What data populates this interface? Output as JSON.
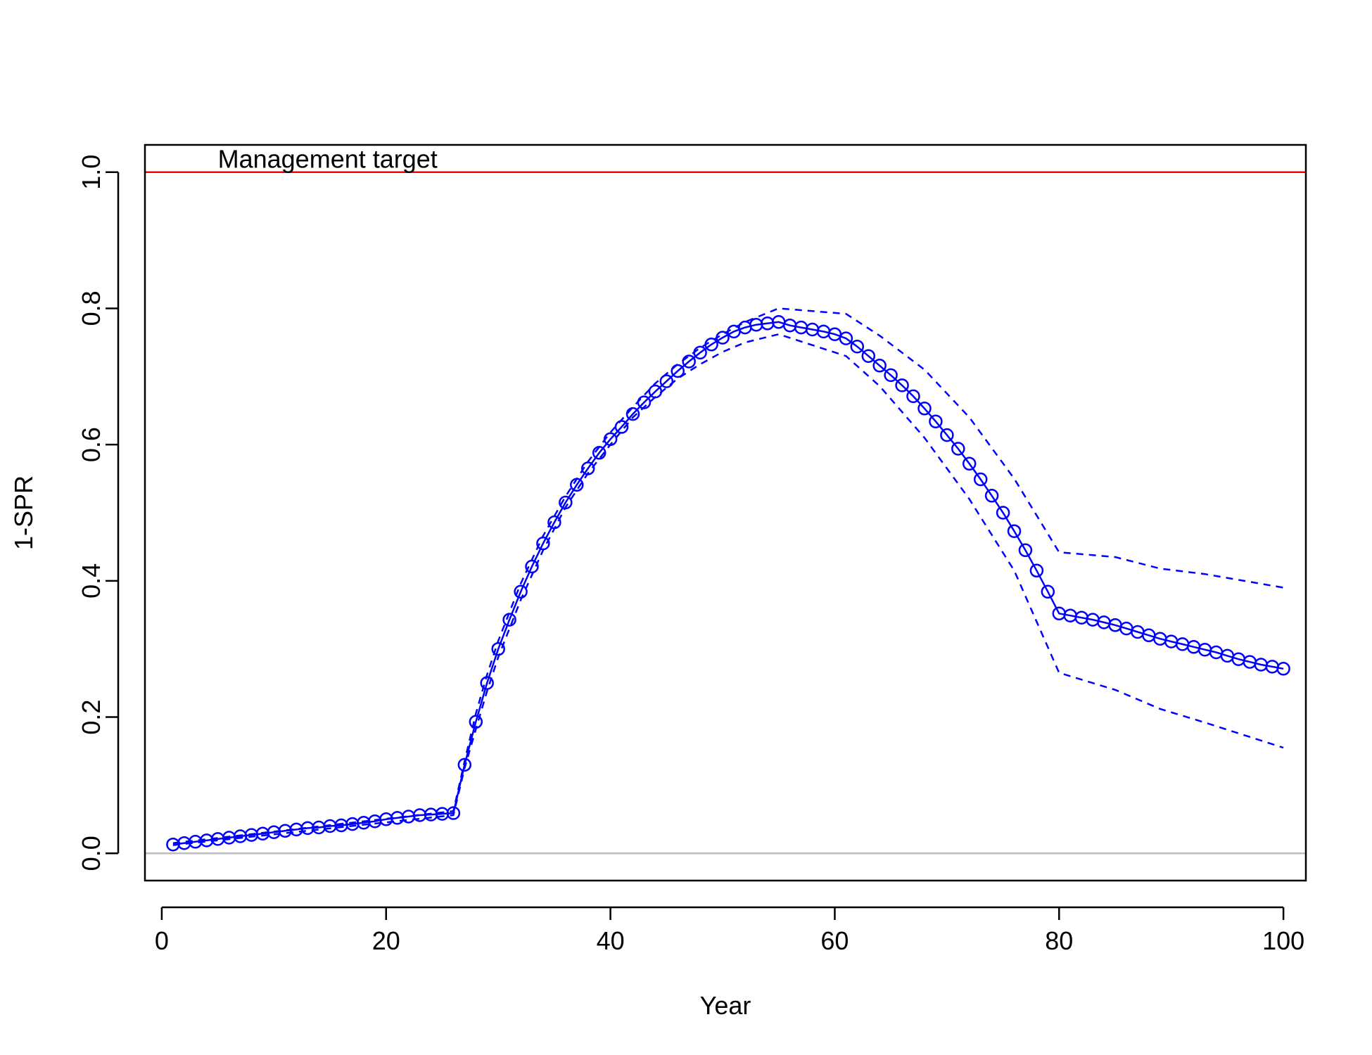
{
  "chart_data": {
    "type": "line",
    "title": "",
    "xlabel": "Year",
    "ylabel": "1-SPR",
    "xlim": [
      -1.5,
      102
    ],
    "ylim": [
      -0.04,
      1.04
    ],
    "xticks": [
      "0",
      "20",
      "40",
      "60",
      "80",
      "100"
    ],
    "xtick_values": [
      0,
      20,
      40,
      60,
      80,
      100
    ],
    "yticks": [
      "0.0",
      "0.2",
      "0.4",
      "0.6",
      "0.8",
      "1.0"
    ],
    "ytick_values": [
      0,
      0.2,
      0.4,
      0.6,
      0.8,
      1.0
    ],
    "grid": false,
    "reference_lines": [
      {
        "y": 1.0,
        "color": "#ff0000",
        "label": "Management target"
      },
      {
        "y": 0.0,
        "color": "#bebebe",
        "label": ""
      }
    ],
    "annotation": {
      "text": "Management target",
      "x": 5,
      "y": 1.0
    },
    "colors": {
      "series": "#0000ff",
      "target": "#ff0000",
      "zero": "#bebebe"
    },
    "series": [
      {
        "role": "estimate",
        "style": "solid-line-with-open-circles",
        "x": [
          1,
          2,
          3,
          4,
          5,
          6,
          7,
          8,
          9,
          10,
          11,
          12,
          13,
          14,
          15,
          16,
          17,
          18,
          19,
          20,
          21,
          22,
          23,
          24,
          25,
          26,
          27,
          28,
          29,
          30,
          31,
          32,
          33,
          34,
          35,
          36,
          37,
          38,
          39,
          40,
          41,
          42,
          43,
          44,
          45,
          46,
          47,
          48,
          49,
          50,
          51,
          52,
          53,
          54,
          55,
          56,
          57,
          58,
          59,
          60,
          61,
          62,
          63,
          64,
          65,
          66,
          67,
          68,
          69,
          70,
          71,
          72,
          73,
          74,
          75,
          76,
          77,
          78,
          79,
          80,
          81,
          82,
          83,
          84,
          85,
          86,
          87,
          88,
          89,
          90,
          91,
          92,
          93,
          94,
          95,
          96,
          97,
          98,
          99,
          100
        ],
        "y": [
          0.013,
          0.015,
          0.017,
          0.019,
          0.021,
          0.023,
          0.025,
          0.027,
          0.029,
          0.031,
          0.033,
          0.035,
          0.037,
          0.038,
          0.04,
          0.041,
          0.043,
          0.045,
          0.047,
          0.05,
          0.052,
          0.054,
          0.056,
          0.057,
          0.058,
          0.059,
          0.13,
          0.193,
          0.25,
          0.3,
          0.343,
          0.384,
          0.421,
          0.455,
          0.486,
          0.515,
          0.541,
          0.565,
          0.588,
          0.608,
          0.626,
          0.645,
          0.662,
          0.678,
          0.693,
          0.708,
          0.722,
          0.735,
          0.747,
          0.757,
          0.766,
          0.772,
          0.776,
          0.778,
          0.78,
          0.775,
          0.772,
          0.769,
          0.766,
          0.762,
          0.756,
          0.744,
          0.73,
          0.716,
          0.702,
          0.687,
          0.671,
          0.653,
          0.634,
          0.614,
          0.594,
          0.572,
          0.549,
          0.525,
          0.5,
          0.473,
          0.445,
          0.415,
          0.384,
          0.352,
          0.349,
          0.346,
          0.343,
          0.339,
          0.335,
          0.33,
          0.325,
          0.32,
          0.315,
          0.311,
          0.307,
          0.303,
          0.299,
          0.295,
          0.29,
          0.285,
          0.281,
          0.277,
          0.274,
          0.271
        ]
      },
      {
        "role": "upper-interval",
        "style": "dashed-line",
        "x": [
          1,
          26,
          27,
          28,
          29,
          30,
          32,
          34,
          36,
          38,
          40,
          42,
          44,
          46,
          48,
          50,
          52,
          55,
          61,
          64,
          68,
          72,
          76,
          80,
          85,
          89,
          93,
          100
        ],
        "y": [
          0.015,
          0.062,
          0.135,
          0.205,
          0.262,
          0.312,
          0.396,
          0.466,
          0.524,
          0.575,
          0.618,
          0.655,
          0.69,
          0.718,
          0.742,
          0.762,
          0.78,
          0.8,
          0.792,
          0.76,
          0.71,
          0.64,
          0.55,
          0.442,
          0.435,
          0.418,
          0.41,
          0.39
        ]
      },
      {
        "role": "lower-interval",
        "style": "dashed-line",
        "x": [
          1,
          26,
          27,
          28,
          29,
          30,
          32,
          34,
          36,
          38,
          40,
          42,
          44,
          46,
          48,
          50,
          52,
          55,
          61,
          64,
          68,
          72,
          76,
          80,
          85,
          89,
          93,
          100
        ],
        "y": [
          0.012,
          0.056,
          0.125,
          0.182,
          0.238,
          0.288,
          0.372,
          0.445,
          0.508,
          0.558,
          0.6,
          0.64,
          0.67,
          0.697,
          0.718,
          0.736,
          0.75,
          0.762,
          0.73,
          0.686,
          0.61,
          0.52,
          0.415,
          0.265,
          0.24,
          0.212,
          0.192,
          0.155
        ]
      }
    ]
  }
}
